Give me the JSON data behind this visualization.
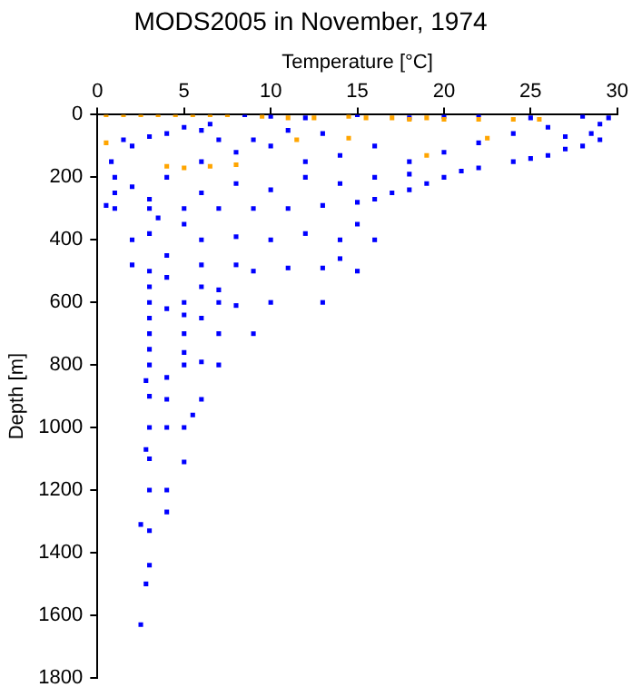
{
  "chart_data": {
    "type": "scatter",
    "title": "MODS2005 in November, 1974",
    "xlabel": "Temperature [°C]",
    "ylabel": "Depth [m]",
    "xlim": [
      0,
      30
    ],
    "xticks": [
      0,
      5,
      10,
      15,
      20,
      25,
      30
    ],
    "ylim": [
      1800,
      0
    ],
    "yticks": [
      0,
      200,
      400,
      600,
      800,
      1000,
      1200,
      1400,
      1600,
      1800
    ],
    "grid": false,
    "legend": false,
    "marker": "square",
    "series": [
      {
        "color": "#0000ff",
        "x": [
          8.5,
          10,
          12,
          15,
          18,
          20,
          22,
          25,
          28,
          29.5,
          29,
          28.5,
          29,
          28,
          27,
          26,
          25,
          24,
          22,
          21,
          20,
          19,
          18,
          17,
          16,
          15,
          13,
          11,
          9,
          7,
          5,
          3,
          1,
          0.5,
          1,
          1,
          0.8,
          1.5,
          2,
          3,
          4,
          5,
          6,
          7,
          6.5,
          8,
          10,
          12,
          14,
          16,
          18,
          20,
          22,
          24,
          26,
          27,
          6,
          4,
          2,
          3,
          6,
          8,
          10,
          12,
          14,
          16,
          18,
          13,
          11,
          9,
          3.5,
          5,
          3,
          6,
          8,
          10,
          12,
          14,
          16,
          15,
          2,
          2,
          3,
          4,
          6,
          8,
          9,
          11,
          13,
          15,
          14,
          3,
          4,
          6,
          7,
          3,
          5,
          7,
          8,
          10,
          13,
          3,
          4,
          5,
          6,
          3,
          5,
          7,
          9,
          3,
          5,
          6,
          3,
          5,
          7,
          2.8,
          4,
          3,
          4,
          6,
          3,
          4,
          5,
          5.5,
          2.8,
          3,
          5,
          3,
          4,
          2.5,
          3,
          3,
          2.8,
          2.5,
          4
        ],
        "values": [
          0,
          5,
          10,
          0,
          10,
          5,
          0,
          10,
          5,
          10,
          30,
          60,
          80,
          100,
          110,
          130,
          140,
          150,
          170,
          180,
          200,
          220,
          240,
          250,
          270,
          280,
          290,
          300,
          300,
          300,
          300,
          300,
          300,
          290,
          250,
          200,
          150,
          80,
          100,
          70,
          60,
          40,
          50,
          80,
          30,
          120,
          100,
          150,
          130,
          100,
          150,
          120,
          90,
          60,
          40,
          70,
          150,
          200,
          230,
          270,
          250,
          220,
          240,
          200,
          220,
          200,
          190,
          60,
          50,
          80,
          330,
          350,
          380,
          400,
          390,
          400,
          380,
          400,
          400,
          350,
          400,
          480,
          500,
          450,
          480,
          480,
          500,
          490,
          490,
          500,
          460,
          550,
          520,
          550,
          560,
          600,
          600,
          600,
          610,
          600,
          600,
          650,
          620,
          640,
          650,
          700,
          700,
          700,
          700,
          750,
          760,
          790,
          800,
          800,
          800,
          850,
          840,
          900,
          910,
          910,
          1000,
          1000,
          1000,
          960,
          1070,
          1100,
          1110,
          1200,
          1200,
          1310,
          1330,
          1440,
          1500,
          1630,
          1270
        ]
      },
      {
        "color": "#ffa500",
        "x": [
          0.5,
          1.5,
          2.5,
          3.5,
          4.5,
          5.5,
          6.5,
          7.5,
          9.5,
          11,
          12.5,
          14.5,
          15.5,
          17,
          18,
          19,
          20,
          22,
          24,
          25.5,
          0.5,
          4,
          5,
          6.5,
          8,
          11.5,
          14.5,
          19,
          22.5
        ],
        "values": [
          0,
          0,
          0,
          0,
          0,
          0,
          0,
          0,
          5,
          10,
          10,
          5,
          10,
          10,
          15,
          10,
          15,
          15,
          15,
          15,
          90,
          165,
          170,
          165,
          160,
          80,
          75,
          130,
          75
        ]
      }
    ]
  }
}
